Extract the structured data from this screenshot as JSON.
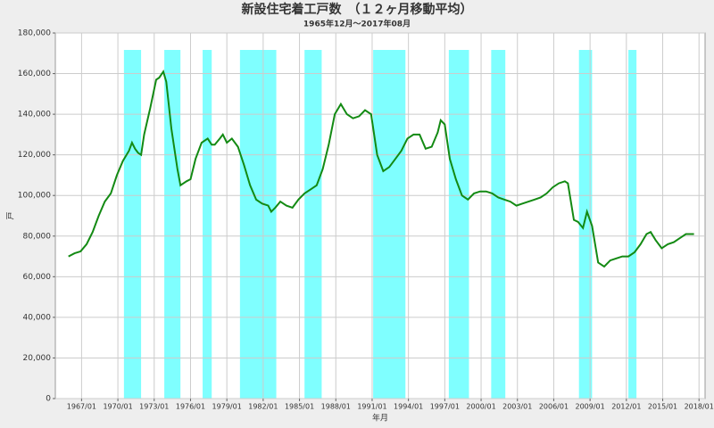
{
  "chart_data": {
    "type": "line",
    "title": "新設住宅着工戸数　（１２ヶ月移動平均）",
    "subtitle": "1965年12月～2017年08月",
    "x_label": "年月",
    "y_label": "戸",
    "x": [
      "1965/12",
      "1966/06",
      "1966/12",
      "1967/06",
      "1967/12",
      "1968/06",
      "1968/12",
      "1969/06",
      "1969/12",
      "1970/06",
      "1970/12",
      "1971/03",
      "1971/06",
      "1971/09",
      "1971/12",
      "1972/03",
      "1972/09",
      "1973/03",
      "1973/06",
      "1973/10",
      "1974/01",
      "1974/06",
      "1974/12",
      "1975/03",
      "1975/09",
      "1976/01",
      "1976/06",
      "1976/12",
      "1977/06",
      "1977/10",
      "1978/01",
      "1978/06",
      "1978/09",
      "1979/01",
      "1979/06",
      "1979/12",
      "1980/06",
      "1980/12",
      "1981/06",
      "1981/12",
      "1982/06",
      "1982/09",
      "1983/01",
      "1983/06",
      "1983/12",
      "1984/06",
      "1984/12",
      "1985/06",
      "1985/12",
      "1986/06",
      "1986/12",
      "1987/06",
      "1987/12",
      "1988/06",
      "1988/12",
      "1989/06",
      "1989/12",
      "1990/06",
      "1990/12",
      "1991/06",
      "1991/12",
      "1992/06",
      "1992/12",
      "1993/06",
      "1993/12",
      "1994/06",
      "1994/12",
      "1995/06",
      "1995/12",
      "1996/06",
      "1996/09",
      "1997/01",
      "1997/06",
      "1997/12",
      "1998/06",
      "1998/12",
      "1999/06",
      "1999/12",
      "2000/06",
      "2000/12",
      "2001/06",
      "2001/12",
      "2002/06",
      "2002/12",
      "2003/06",
      "2003/12",
      "2004/06",
      "2004/12",
      "2005/06",
      "2005/12",
      "2006/06",
      "2006/12",
      "2007/03",
      "2007/09",
      "2008/01",
      "2008/06",
      "2008/10",
      "2009/03",
      "2009/09",
      "2010/03",
      "2010/09",
      "2011/03",
      "2011/09",
      "2012/03",
      "2012/09",
      "2013/03",
      "2013/09",
      "2014/01",
      "2014/06",
      "2014/12",
      "2015/06",
      "2015/12",
      "2016/06",
      "2016/12",
      "2017/08"
    ],
    "series": [
      {
        "name": "新設住宅着工戸数",
        "color": "#138a13",
        "values": [
          70000,
          71500,
          72500,
          76000,
          82000,
          90000,
          97000,
          101000,
          110000,
          117000,
          122000,
          126000,
          123000,
          121000,
          120000,
          130000,
          143000,
          157000,
          158000,
          161000,
          156000,
          133000,
          113000,
          105000,
          107000,
          108000,
          118000,
          126000,
          128000,
          125000,
          125000,
          128000,
          130000,
          126000,
          128000,
          124000,
          115000,
          105000,
          98000,
          96000,
          95000,
          92000,
          94000,
          97000,
          95000,
          94000,
          98000,
          101000,
          103000,
          105000,
          113000,
          125000,
          140000,
          145000,
          140000,
          138000,
          139000,
          142000,
          140000,
          120000,
          112000,
          114000,
          118000,
          122000,
          128000,
          130000,
          130000,
          123000,
          124000,
          131000,
          137000,
          135000,
          118000,
          108000,
          100000,
          98000,
          101000,
          102000,
          102000,
          101000,
          99000,
          98000,
          97000,
          95000,
          96000,
          97000,
          98000,
          99000,
          101000,
          104000,
          106000,
          107000,
          106000,
          88000,
          87000,
          84000,
          92000,
          85000,
          67000,
          65000,
          68000,
          69000,
          70000,
          70000,
          72000,
          76000,
          81000,
          82000,
          78000,
          74000,
          76000,
          77000,
          79000,
          81000,
          81000
        ]
      }
    ],
    "shaded_periods": [
      [
        "1970/07",
        "1971/12"
      ],
      [
        "1973/11",
        "1975/03"
      ],
      [
        "1977/01",
        "1977/10"
      ],
      [
        "1980/02",
        "1983/02"
      ],
      [
        "1985/06",
        "1986/11"
      ],
      [
        "1991/02",
        "1993/10"
      ],
      [
        "1997/05",
        "1999/01"
      ],
      [
        "2000/11",
        "2002/01"
      ],
      [
        "2008/02",
        "2009/03"
      ],
      [
        "2012/03",
        "2012/11"
      ]
    ],
    "shade_color": "#7fffff",
    "xlim": [
      "1964/11",
      "2018/07"
    ],
    "xticks": [
      "1967/01",
      "1970/01",
      "1973/01",
      "1976/01",
      "1979/01",
      "1982/01",
      "1985/01",
      "1988/01",
      "1991/01",
      "1994/01",
      "1997/01",
      "2000/01",
      "2003/01",
      "2006/01",
      "2009/01",
      "2012/01",
      "2015/01",
      "2018/01"
    ],
    "ylim": [
      0,
      180000
    ],
    "yticks": [
      0,
      {
        "value": 20000,
        "label": "20,000"
      },
      {
        "value": 40000,
        "label": "40,000"
      },
      {
        "value": 60000,
        "label": "60,000"
      },
      {
        "value": 80000,
        "label": "80,000"
      },
      {
        "value": 100000,
        "label": "100,000"
      },
      {
        "value": 120000,
        "label": "120,000"
      },
      {
        "value": 140000,
        "label": "140,000"
      },
      {
        "value": 160000,
        "label": "160,000"
      },
      {
        "value": 180000,
        "label": "180,000"
      }
    ],
    "grid": true
  }
}
